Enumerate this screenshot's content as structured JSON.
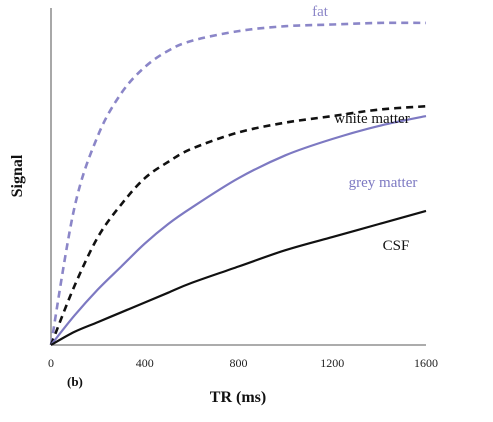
{
  "chart_data": {
    "type": "line",
    "title": "",
    "xlabel": "TR (ms)",
    "ylabel": "Signal",
    "panel_label": "(b)",
    "xlim": [
      0,
      1600
    ],
    "ylim": [
      0,
      1
    ],
    "x_ticks": [
      "0",
      "400",
      "800",
      "1200",
      "1600"
    ],
    "y_ticks": [],
    "grid": false,
    "legend": "inline-labels",
    "series": [
      {
        "name": "fat",
        "color": "#8b86c8",
        "style": "dashed",
        "x": [
          0,
          100,
          200,
          300,
          400,
          500,
          600,
          800,
          1000,
          1200,
          1400,
          1600
        ],
        "y": [
          0,
          0.42,
          0.64,
          0.77,
          0.85,
          0.9,
          0.93,
          0.96,
          0.975,
          0.98,
          0.985,
          0.985
        ]
      },
      {
        "name": "white matter",
        "color": "#111111",
        "style": "dashed",
        "x": [
          0,
          100,
          200,
          300,
          400,
          500,
          600,
          800,
          1000,
          1200,
          1400,
          1600
        ],
        "y": [
          0,
          0.18,
          0.33,
          0.43,
          0.51,
          0.56,
          0.6,
          0.65,
          0.68,
          0.7,
          0.72,
          0.73
        ]
      },
      {
        "name": "grey matter",
        "color": "#7d79c2",
        "style": "solid",
        "x": [
          0,
          100,
          200,
          300,
          400,
          500,
          600,
          800,
          1000,
          1200,
          1400,
          1600
        ],
        "y": [
          0,
          0.09,
          0.17,
          0.24,
          0.31,
          0.37,
          0.42,
          0.51,
          0.58,
          0.63,
          0.67,
          0.7
        ]
      },
      {
        "name": "CSF",
        "color": "#111111",
        "style": "solid",
        "x": [
          0,
          100,
          200,
          300,
          400,
          500,
          600,
          800,
          1000,
          1200,
          1400,
          1600
        ],
        "y": [
          0,
          0.04,
          0.07,
          0.1,
          0.13,
          0.16,
          0.19,
          0.24,
          0.29,
          0.33,
          0.37,
          0.41
        ]
      }
    ]
  }
}
